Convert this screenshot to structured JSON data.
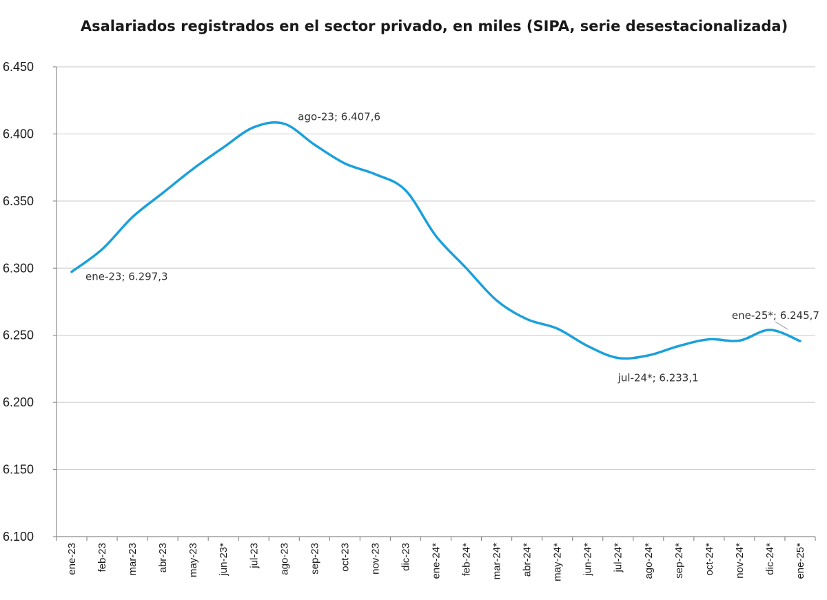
{
  "chart_data": {
    "type": "line",
    "title": "Asalariados registrados en el sector privado, en miles (SIPA, serie desestacionalizada)",
    "xlabel": "",
    "ylabel": "",
    "ylim": [
      6100,
      6450
    ],
    "yticks": [
      "6.100",
      "6.150",
      "6.200",
      "6.250",
      "6.300",
      "6.350",
      "6.400",
      "6.450"
    ],
    "grid": true,
    "line_color": "#1aa0dc",
    "categories": [
      "ene-23",
      "feb-23",
      "mar-23",
      "abr-23",
      "may-23",
      "jun-23*",
      "jul-23",
      "ago-23",
      "sep-23",
      "oct-23",
      "nov-23",
      "dic-23",
      "ene-24*",
      "feb-24*",
      "mar-24*",
      "abr-24*",
      "may-24*",
      "jun-24*",
      "jul-24*",
      "ago-24*",
      "sep-24*",
      "oct-24*",
      "nov-24*",
      "dic-24*",
      "ene-25*"
    ],
    "series": [
      {
        "values": [
          6297.3,
          6314,
          6338,
          6356,
          6374,
          6390,
          6405,
          6407.6,
          6392,
          6378,
          6370,
          6358,
          6324,
          6300,
          6276,
          6262,
          6255,
          6242,
          6233.1,
          6235,
          6242,
          6247,
          6246,
          6254,
          6245.7
        ]
      }
    ],
    "annotations": [
      {
        "index": 0,
        "text": "ene-23; 6.297,3"
      },
      {
        "index": 7,
        "text": "ago-23; 6.407,6"
      },
      {
        "index": 18,
        "text": "jul-24*; 6.233,1"
      },
      {
        "index": 24,
        "text": "ene-25*; 6.245,7"
      }
    ]
  }
}
